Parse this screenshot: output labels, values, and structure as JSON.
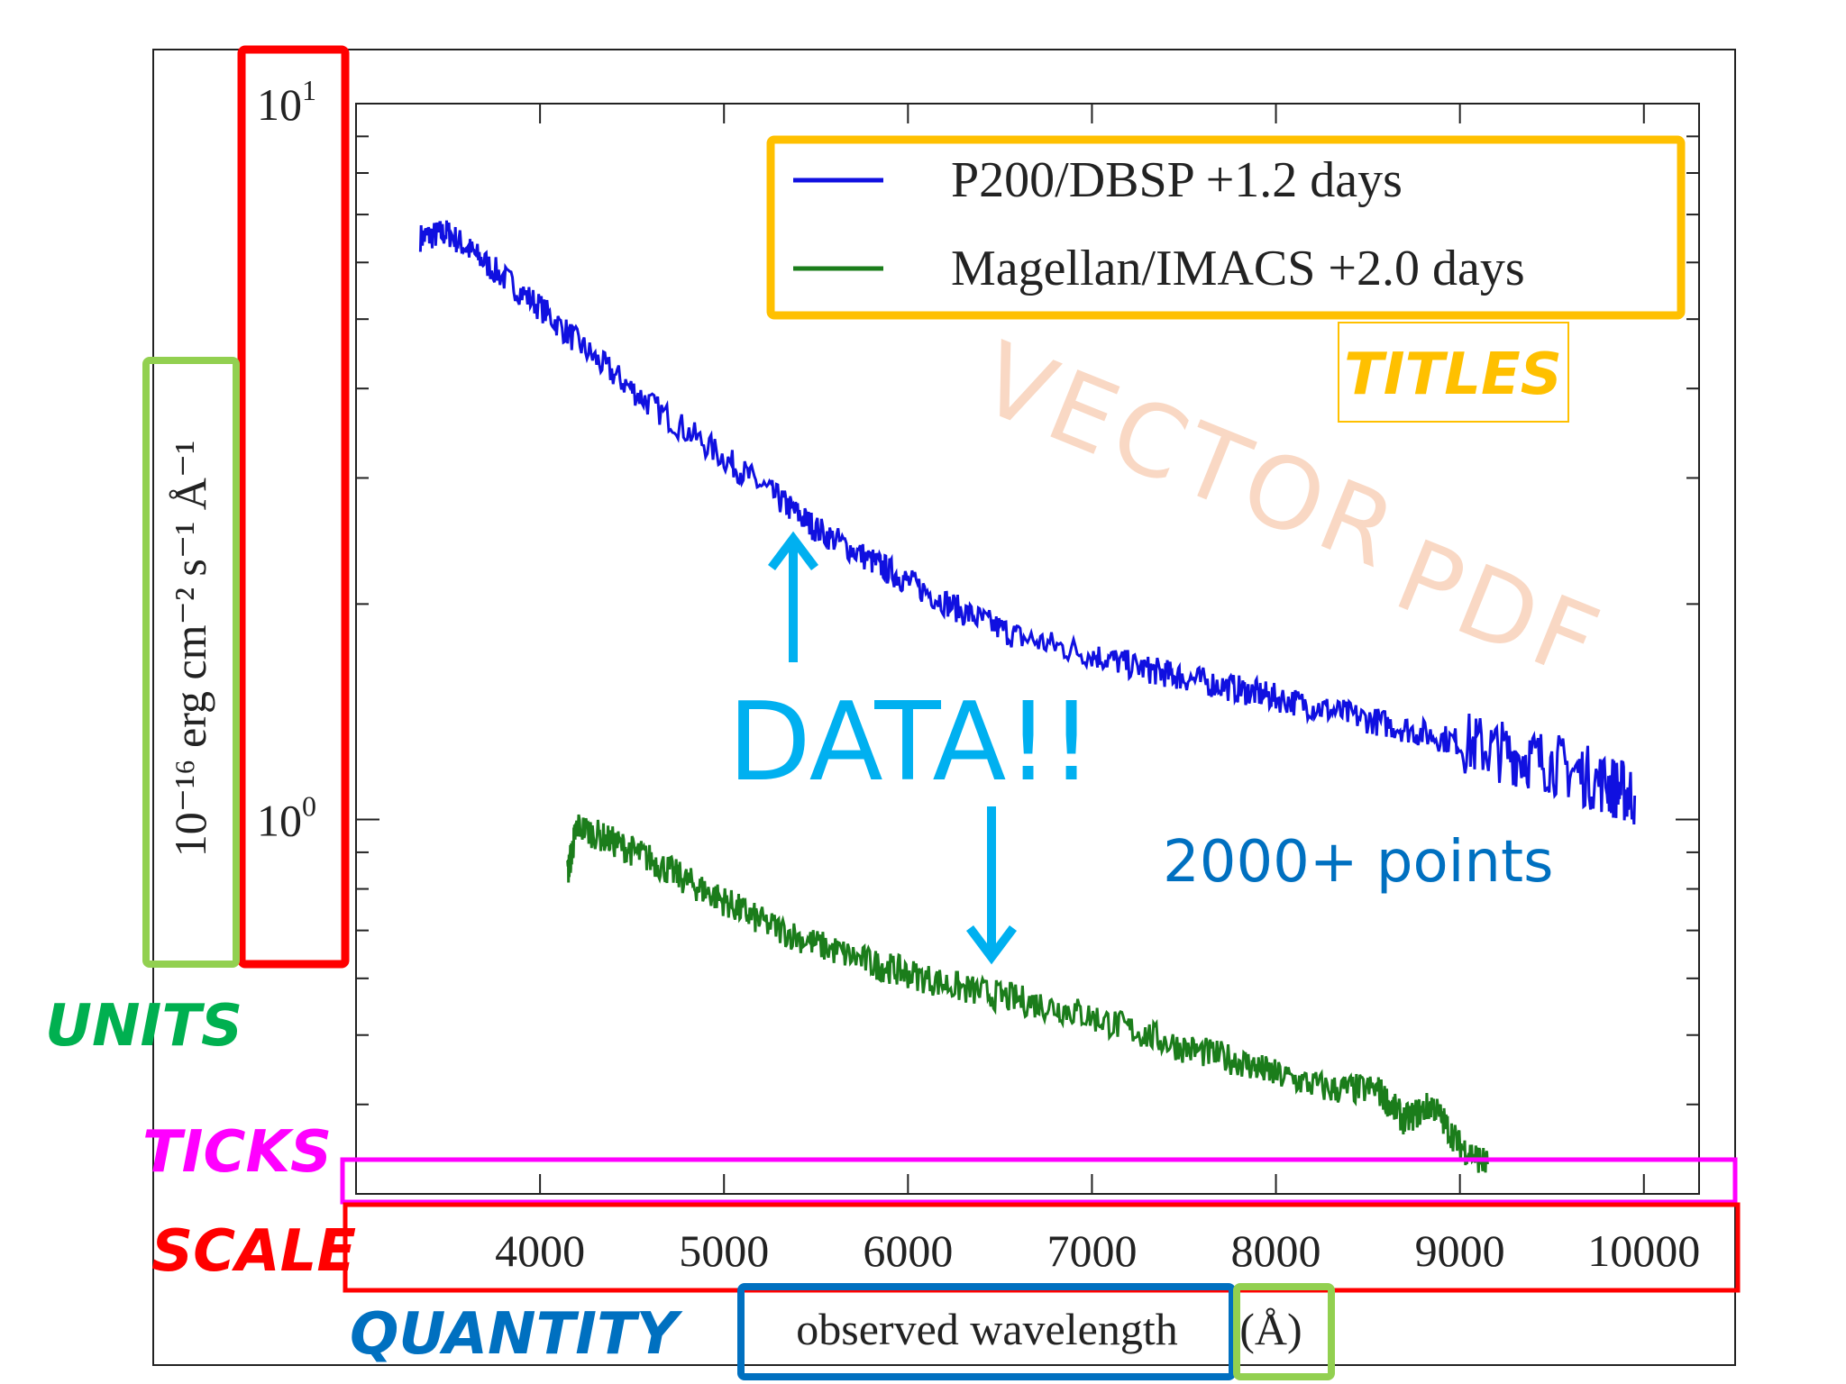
{
  "chart_data": {
    "type": "line",
    "xlabel": "observed wavelength",
    "xlabel_unit": "(Å)",
    "ylabel_unit": "10⁻¹⁶ erg cm⁻² s⁻¹ Å⁻¹",
    "xlim": [
      3000,
      10300
    ],
    "ylim": [
      0.3,
      10
    ],
    "yscale": "log",
    "x_ticks": [
      "4000",
      "5000",
      "6000",
      "7000",
      "8000",
      "9000",
      "10000"
    ],
    "y_tick_labels": [
      {
        "value": 10,
        "label": "10",
        "exp": "1"
      },
      {
        "value": 1,
        "label": "10",
        "exp": "0"
      }
    ],
    "legend_position": "top-right",
    "series": [
      {
        "name": "P200/DBSP +1.2 days",
        "color": "#1010e0",
        "x": [
          3350,
          3500,
          3700,
          4000,
          4300,
          4600,
          5000,
          5300,
          5500,
          5800,
          6000,
          6300,
          6600,
          7000,
          7300,
          7500,
          7800,
          8000,
          8300,
          8600,
          8900,
          9200,
          9500,
          9800,
          9950
        ],
        "y": [
          6.5,
          6.6,
          6.0,
          5.2,
          4.4,
          3.8,
          3.2,
          2.8,
          2.55,
          2.3,
          2.15,
          1.95,
          1.8,
          1.7,
          1.62,
          1.58,
          1.52,
          1.48,
          1.42,
          1.36,
          1.3,
          1.25,
          1.2,
          1.12,
          1.08
        ]
      },
      {
        "name": "Magellan/IMACS +2.0 days",
        "color": "#1b7d1b",
        "x": [
          4150,
          4200,
          4400,
          4600,
          4800,
          5000,
          5200,
          5500,
          5800,
          6000,
          6300,
          6600,
          6900,
          7200,
          7500,
          7800,
          8000,
          8300,
          8550,
          8700,
          8850,
          9000,
          9150
        ],
        "y": [
          0.84,
          0.98,
          0.93,
          0.88,
          0.82,
          0.77,
          0.72,
          0.67,
          0.63,
          0.61,
          0.58,
          0.56,
          0.54,
          0.51,
          0.48,
          0.46,
          0.44,
          0.42,
          0.42,
          0.38,
          0.4,
          0.35,
          0.33
        ]
      }
    ]
  },
  "annotations": {
    "titles_label": "TITLES",
    "units_label": "UNITS",
    "ticks_label": "TICKS",
    "scale_label": "SCALE",
    "quantity_label": "QUANTITY",
    "data_label": "DATA!!",
    "points_label": "2000+ points",
    "watermark_line1": "VECTOR",
    "watermark_line2": "PDF"
  },
  "colors": {
    "titles": "#ffc000",
    "units": "#92d050",
    "units_text": "#00b050",
    "ticks": "#ff00ff",
    "scale": "#ff0000",
    "quantity": "#0070c0",
    "data": "#00b0f0",
    "points": "#0070c0",
    "watermark": "#f9d8c4"
  }
}
